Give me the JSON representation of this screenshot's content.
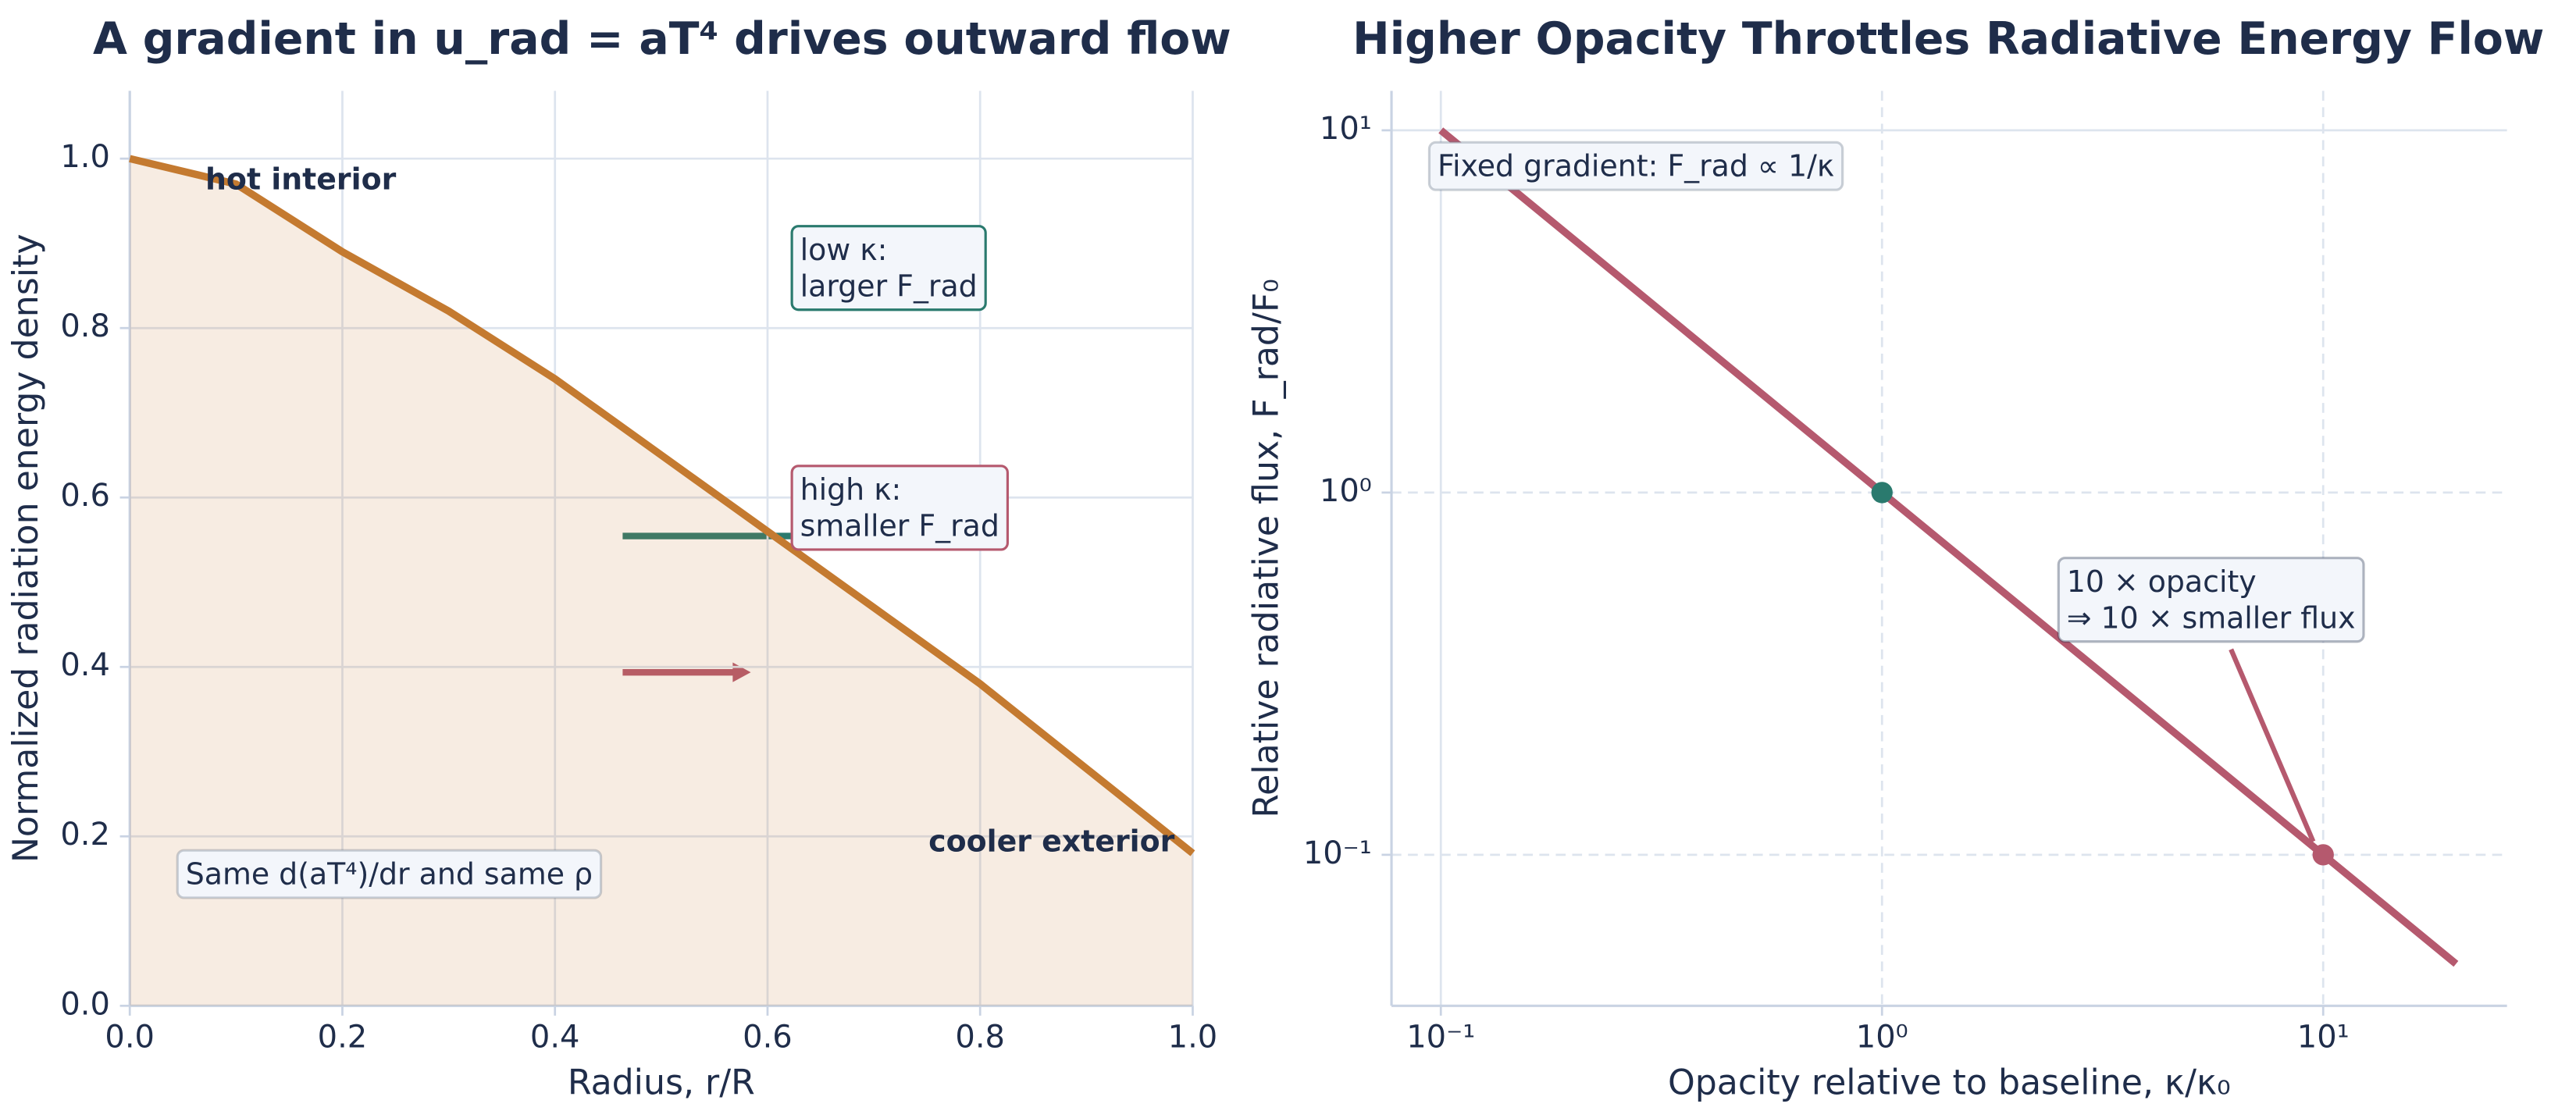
{
  "chart_data": [
    {
      "type": "line",
      "title": "A gradient in u_rad = aT⁴ drives outward flow",
      "xlabel": "Radius, r/R",
      "ylabel": "Normalized radiation energy density",
      "xlim": [
        0,
        1
      ],
      "ylim": [
        0,
        1.08
      ],
      "xticks": [
        {
          "value": 0,
          "label": "0.0"
        },
        0.2,
        0.4,
        0.6,
        0.8,
        {
          "value": 1,
          "label": "1.0"
        }
      ],
      "yticks": [
        {
          "value": 0,
          "label": "0.0"
        },
        0.2,
        0.4,
        0.6,
        0.8,
        {
          "value": 1,
          "label": "1.0"
        }
      ],
      "grid": true,
      "fill": true,
      "series": [
        {
          "color": "#c47a30",
          "x": [
            0,
            0.1,
            0.2,
            0.3,
            0.4,
            0.5,
            0.6,
            0.7,
            0.8,
            0.9,
            1
          ],
          "values": [
            1.0,
            0.97,
            0.89,
            0.82,
            0.74,
            0.65,
            0.56,
            0.47,
            0.38,
            0.28,
            0.18
          ]
        }
      ],
      "annotations": [
        {
          "text": [
            "hot interior"
          ],
          "color": "#c47a30"
        },
        {
          "text": [
            "cooler exterior"
          ],
          "color": "#5f6b7f"
        },
        {
          "text": [
            "low κ:",
            "larger F_rad"
          ],
          "color": "#2a7a6e"
        },
        {
          "text": [
            "high κ:",
            "smaller F_rad"
          ],
          "color": "#b5596e"
        },
        {
          "text": [
            "Same d(aT⁴)/dr and same ρ"
          ],
          "color": "#6b778a"
        }
      ]
    },
    {
      "type": "line",
      "title": "Higher Opacity Throttles Radiative Energy Flow",
      "xlabel": "Opacity relative to baseline, κ/κ₀",
      "ylabel": "Relative radiative flux, F_rad/F₀",
      "xscale": "log",
      "yscale": "log",
      "xlim": [
        0.0773,
        26.1
      ],
      "ylim": [
        0.0383,
        12.85
      ],
      "xticks": [
        {
          "value": 0.1,
          "label": "10⁻¹"
        },
        {
          "value": 1,
          "label": "10⁰"
        },
        {
          "value": 10,
          "label": "10¹"
        }
      ],
      "yticks": [
        {
          "value": 0.1,
          "label": "10⁻¹"
        },
        {
          "value": 1,
          "label": "10⁰"
        },
        {
          "value": 10,
          "label": "10¹"
        }
      ],
      "grid": true,
      "fill": false,
      "series": [
        {
          "color": "#b5596e",
          "x": [
            0.1,
            20
          ],
          "values": [
            10,
            0.05
          ]
        },
        {
          "color": "#2a7a6e",
          "marker": true,
          "x": [
            1
          ],
          "values": [
            1
          ]
        },
        {
          "color": "#b5596e",
          "marker": true,
          "x": [
            10
          ],
          "values": [
            0.1
          ]
        }
      ],
      "annotations": [
        {
          "text": [
            "Fixed gradient: F_rad ∝ 1/κ"
          ],
          "color": "#6b778a"
        },
        {
          "text": [
            "10 × opacity",
            "⇒ 10 × smaller flux"
          ],
          "color": "#1f2d4a"
        }
      ]
    }
  ]
}
